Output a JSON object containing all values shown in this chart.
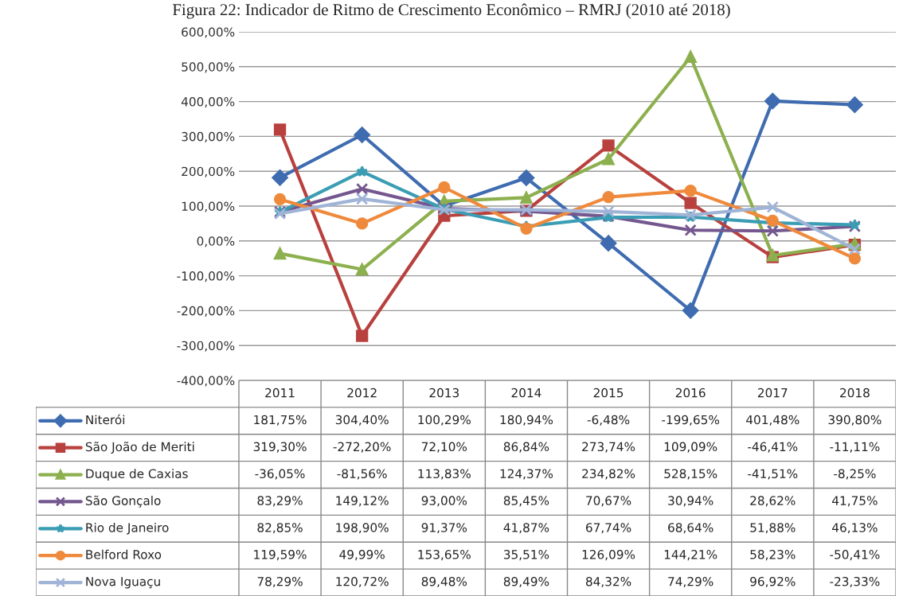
{
  "chart_data": {
    "type": "line",
    "title": "Figura 22: Indicador de Ritmo de Crescimento Econômico – RMRJ (2010 até 2018)",
    "categories": [
      "2011",
      "2012",
      "2013",
      "2014",
      "2015",
      "2016",
      "2017",
      "2018"
    ],
    "ylim": [
      -400,
      600
    ],
    "yticks": [
      {
        "value": -400,
        "label": "-400,00%"
      },
      {
        "value": -300,
        "label": "-300,00%"
      },
      {
        "value": -200,
        "label": "-200,00%"
      },
      {
        "value": -100,
        "label": "-100,00%"
      },
      {
        "value": 0,
        "label": "0,00%"
      },
      {
        "value": 100,
        "label": "100,00%"
      },
      {
        "value": 200,
        "label": "200,00%"
      },
      {
        "value": 300,
        "label": "300,00%"
      },
      {
        "value": 400,
        "label": "400,00%"
      },
      {
        "value": 500,
        "label": "500,00%"
      },
      {
        "value": 600,
        "label": "600,00%"
      }
    ],
    "grid": "y",
    "legend": "bottom",
    "line_style": "solid",
    "series": [
      {
        "name": "Niterói",
        "color": "#3f6cb0",
        "marker": "diamond",
        "values": [
          181.75,
          304.4,
          100.29,
          180.94,
          -6.48,
          -199.65,
          401.48,
          390.8
        ],
        "value_labels": [
          "181,75%",
          "304,40%",
          "100,29%",
          "180,94%",
          "-6,48%",
          "-199,65%",
          "401,48%",
          "390,80%"
        ]
      },
      {
        "name": "São João de Meriti",
        "color": "#b8413e",
        "marker": "square",
        "values": [
          319.3,
          -272.2,
          72.1,
          86.84,
          273.74,
          109.09,
          -46.41,
          -11.11
        ],
        "value_labels": [
          "319,30%",
          "-272,20%",
          "72,10%",
          "86,84%",
          "273,74%",
          "109,09%",
          "-46,41%",
          "-11,11%"
        ]
      },
      {
        "name": "Duque de Caxias",
        "color": "#8db04f",
        "marker": "triangle",
        "values": [
          -36.05,
          -81.56,
          113.83,
          124.37,
          234.82,
          528.15,
          -41.51,
          -8.25
        ],
        "value_labels": [
          "-36,05%",
          "-81,56%",
          "113,83%",
          "124,37%",
          "234,82%",
          "528,15%",
          "-41,51%",
          "-8,25%"
        ]
      },
      {
        "name": "São Gonçalo",
        "color": "#74578f",
        "marker": "cross",
        "values": [
          83.29,
          149.12,
          93.0,
          85.45,
          70.67,
          30.94,
          28.62,
          41.75
        ],
        "value_labels": [
          "83,29%",
          "149,12%",
          "93,00%",
          "85,45%",
          "70,67%",
          "30,94%",
          "28,62%",
          "41,75%"
        ]
      },
      {
        "name": "Rio de Janeiro",
        "color": "#3b9db4",
        "marker": "star",
        "values": [
          82.85,
          198.9,
          91.37,
          41.87,
          67.74,
          68.64,
          51.88,
          46.13
        ],
        "value_labels": [
          "82,85%",
          "198,90%",
          "91,37%",
          "41,87%",
          "67,74%",
          "68,64%",
          "51,88%",
          "46,13%"
        ]
      },
      {
        "name": "Belford Roxo",
        "color": "#ef8a3c",
        "marker": "circle",
        "values": [
          119.59,
          49.99,
          153.65,
          35.51,
          126.09,
          144.21,
          58.23,
          -50.41
        ],
        "value_labels": [
          "119,59%",
          "49,99%",
          "153,65%",
          "35,51%",
          "126,09%",
          "144,21%",
          "58,23%",
          "-50,41%"
        ]
      },
      {
        "name": "Nova Iguaçu",
        "color": "#9fb4d6",
        "marker": "cross",
        "values": [
          78.29,
          120.72,
          89.48,
          89.49,
          84.32,
          74.29,
          96.92,
          -23.33
        ],
        "value_labels": [
          "78,29%",
          "120,72%",
          "89,48%",
          "89,49%",
          "84,32%",
          "74,29%",
          "96,92%",
          "-23,33%"
        ]
      }
    ]
  }
}
